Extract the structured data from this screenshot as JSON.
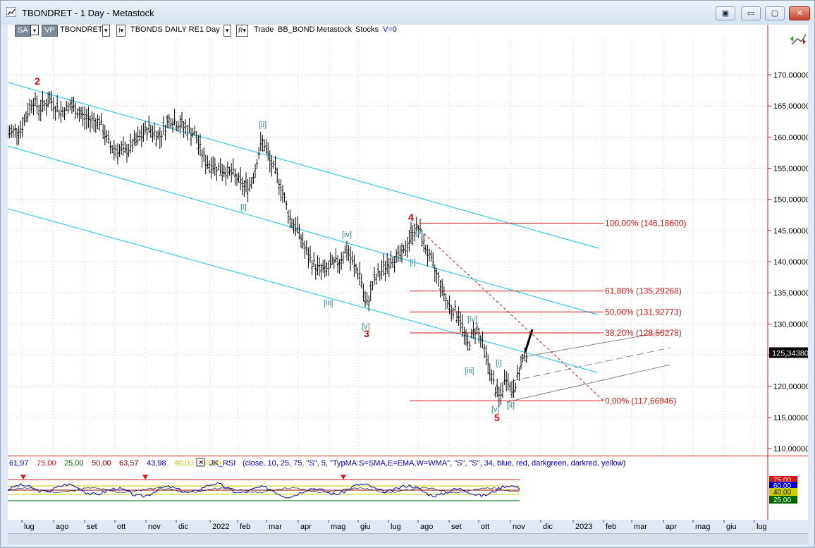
{
  "window": {
    "title": "TBONDRET - 1 Day - Metastock",
    "buttons": [
      "▣",
      "▭",
      "▢",
      "✕"
    ]
  },
  "toolbar": {
    "sa": "SA",
    "vp": "VP",
    "symbol": "TBONDRET",
    "series": "TBONDS DAILY RE",
    "period": "1 Day",
    "trade": "Trade",
    "bb": "BB_BOND",
    "app": "Metastock",
    "stocks": "Stocks",
    "v": "V=0",
    "box_v": "▾",
    "box_i": "I▾",
    "box_r": "R▾"
  },
  "colors": {
    "bars": "#000000",
    "channel": "#33ccee",
    "fib": "#d11a1a",
    "wave_minor": "#2a8a9a",
    "wave_major": "#e00000",
    "axis_text": "#000000",
    "rsi_blue": "#0000cc"
  },
  "price_axis": {
    "ticks": [
      "170,00000",
      "165,00000",
      "160,00000",
      "155,00000",
      "150,00000",
      "145,00000",
      "140,00000",
      "135,00000",
      "130,00000",
      "125,00000",
      "120,00000",
      "115,00000",
      "110,00000"
    ],
    "tick_values": [
      170,
      165,
      160,
      155,
      150,
      145,
      140,
      135,
      130,
      125,
      120,
      115,
      110
    ],
    "last_price": "125,34380",
    "last_value": 125.3438
  },
  "time_axis": [
    "lug",
    "ago",
    "set",
    "ott",
    "nov",
    "dic",
    "2022",
    "feb",
    "mar",
    "apr",
    "mag",
    "giu",
    "lug",
    "ago",
    "set",
    "ott",
    "nov",
    "dic",
    "2023",
    "feb",
    "mar",
    "apr",
    "mag",
    "giu",
    "lug"
  ],
  "fib_levels": [
    {
      "label": "100,00% (146,18600)",
      "value": 146.186
    },
    {
      "label": "61,80% (135,29268)",
      "value": 135.29268
    },
    {
      "label": "50,00% (131,92773)",
      "value": 131.92773
    },
    {
      "label": "38,20% (128,56278)",
      "value": 128.56278
    },
    {
      "label": "0,00% (117,66946)",
      "value": 117.66946
    }
  ],
  "wave_labels_major": [
    "2",
    "3",
    "4",
    "5"
  ],
  "wave_labels_minor": [
    "[ii]",
    "[i]",
    "[iv]",
    "[iii]",
    "[v]",
    "[ii]",
    "[i]",
    "[iv]",
    "[iii]",
    "[v]",
    "[i]",
    "[ii]"
  ],
  "rsi": {
    "legend": [
      {
        "text": "61,97",
        "color": "#0000cc"
      },
      {
        "text": "75,00",
        "color": "#d11a1a"
      },
      {
        "text": "25,00",
        "color": "#006400"
      },
      {
        "text": "50,00",
        "color": "#8b0000"
      },
      {
        "text": "63,57",
        "color": "#8b0000"
      },
      {
        "text": "43,98",
        "color": "#0000cc"
      },
      {
        "text": "40,00",
        "color": "#cccc00"
      },
      {
        "text": "60,00",
        "color": "#cccc00"
      }
    ],
    "name": "JK_RSI",
    "params": "(close,  10,  25,  75,  \"S\",  5,  \"TypMA:S=SMA,E=EMA,W=WMA\",  \"S\",  \"S\",  34,  blue,  red,  darkgreen,  darkred,  yellow)",
    "axis_labels": [
      {
        "text": "75,00",
        "bg": "#d11a1a",
        "fg": "#ffffff"
      },
      {
        "text": "60,00",
        "bg": "#0000cc",
        "fg": "#ffffff"
      },
      {
        "text": "40,00",
        "bg": "#cccc00",
        "fg": "#000000"
      },
      {
        "text": "25,00",
        "bg": "#006400",
        "fg": "#ffffff"
      }
    ]
  }
}
